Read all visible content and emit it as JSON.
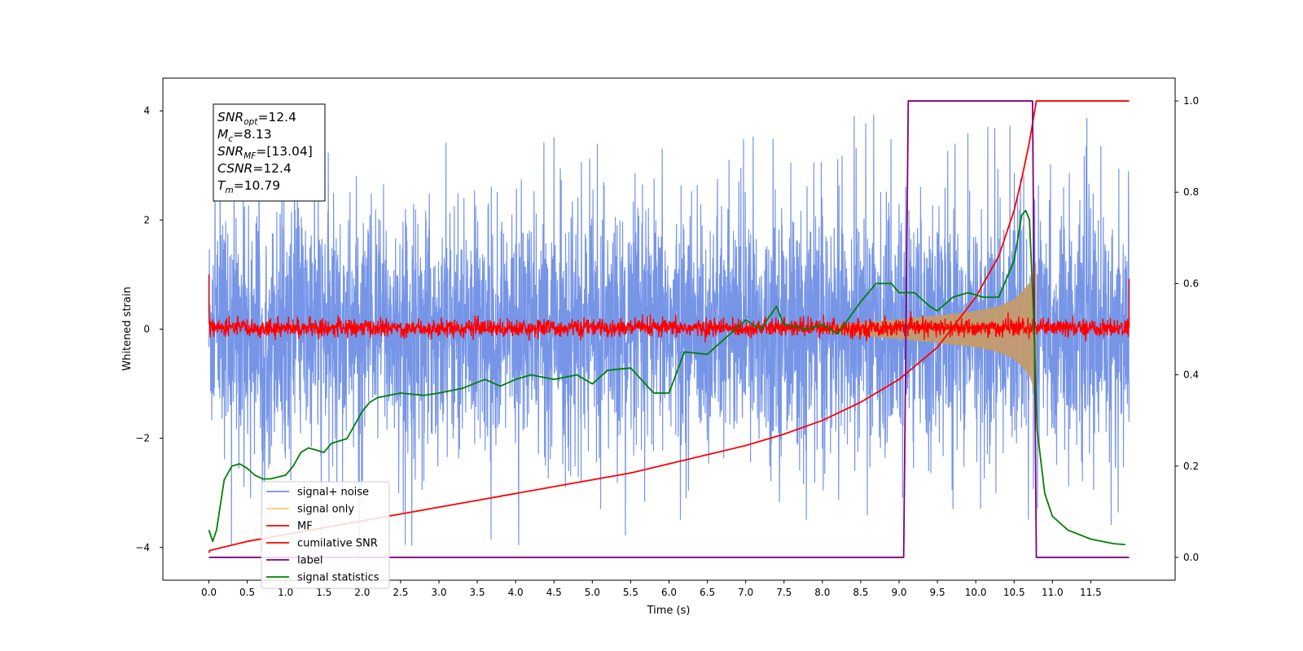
{
  "chart_data": {
    "type": "line",
    "xlabel": "Time (s)",
    "ylabel": "Whitened strain",
    "xlim": [
      -0.6,
      12.6
    ],
    "ylim": [
      -4.6,
      4.6
    ],
    "y2lim": [
      -0.05,
      1.05
    ],
    "x_ticks": [
      "0.0",
      "0.5",
      "1.0",
      "1.5",
      "2.0",
      "2.5",
      "3.0",
      "3.5",
      "4.0",
      "4.5",
      "5.0",
      "5.5",
      "6.0",
      "6.5",
      "7.0",
      "7.5",
      "8.0",
      "8.5",
      "9.0",
      "9.5",
      "10.0",
      "10.5",
      "11.0",
      "11.5"
    ],
    "y_ticks": [
      "4",
      "2",
      "0",
      "−2",
      "−4"
    ],
    "y2_ticks": [
      "1.0",
      "0.8",
      "0.6",
      "0.4",
      "0.2",
      "0.0"
    ],
    "grid": false,
    "legend_position": "lower-left",
    "annotation": {
      "lines": [
        {
          "base": "SNR",
          "sub": "opt",
          "value": "=12.4"
        },
        {
          "base": "M",
          "sub": "c",
          "value": "=8.13"
        },
        {
          "base": "SNR",
          "sub": "MF",
          "value": "=[13.04]"
        },
        {
          "base": "CSNR",
          "sub": "",
          "value": "=12.4"
        },
        {
          "base": "T",
          "sub": "m",
          "value": "=10.79"
        }
      ]
    },
    "series": [
      {
        "name": "signal+ noise",
        "axis": "left",
        "color": "#6f8fe6",
        "kind": "noise",
        "time_range": [
          0.0,
          12.0
        ],
        "envelope": 1.35,
        "peak": 4.15
      },
      {
        "name": "signal only",
        "axis": "left",
        "color": "#ffcc66",
        "kind": "chirp",
        "x": [
          8.0,
          8.5,
          9.0,
          9.5,
          10.0,
          10.3,
          10.5,
          10.6,
          10.7,
          10.79
        ],
        "amplitude": [
          0.05,
          0.12,
          0.18,
          0.25,
          0.33,
          0.42,
          0.55,
          0.68,
          0.85,
          1.25
        ]
      },
      {
        "name": "MF",
        "axis": "left",
        "color": "#ff0000",
        "kind": "noise",
        "time_range": [
          0.0,
          12.0
        ],
        "envelope": 0.08,
        "peak": 1.0
      },
      {
        "name": "cumilative SNR",
        "axis": "right",
        "color": "#ff0000",
        "x": [
          0.0,
          0.01,
          0.5,
          1.0,
          1.5,
          2.0,
          2.5,
          3.0,
          3.5,
          4.0,
          4.5,
          5.0,
          5.5,
          6.0,
          6.5,
          7.0,
          7.5,
          8.0,
          8.5,
          9.0,
          9.5,
          10.0,
          10.3,
          10.5,
          10.6,
          10.7,
          10.79,
          10.8,
          12.0
        ],
        "y": [
          0.01,
          0.015,
          0.035,
          0.05,
          0.065,
          0.08,
          0.095,
          0.11,
          0.125,
          0.14,
          0.155,
          0.17,
          0.185,
          0.205,
          0.225,
          0.245,
          0.27,
          0.3,
          0.34,
          0.39,
          0.46,
          0.57,
          0.66,
          0.76,
          0.83,
          0.91,
          1.0,
          1.0,
          1.0
        ]
      },
      {
        "name": "label",
        "axis": "right",
        "color": "#800080",
        "x": [
          0.0,
          9.06,
          9.12,
          10.74,
          10.79,
          12.0
        ],
        "y": [
          0.0,
          0.0,
          1.0,
          1.0,
          0.0,
          0.0
        ]
      },
      {
        "name": "signal statistics",
        "axis": "right",
        "color": "#008000",
        "x": [
          0.0,
          0.05,
          0.1,
          0.2,
          0.3,
          0.4,
          0.5,
          0.6,
          0.7,
          0.8,
          1.0,
          1.1,
          1.2,
          1.3,
          1.5,
          1.6,
          1.8,
          2.0,
          2.1,
          2.2,
          2.5,
          2.8,
          3.0,
          3.3,
          3.6,
          3.8,
          4.0,
          4.2,
          4.5,
          4.8,
          5.0,
          5.2,
          5.5,
          5.8,
          6.0,
          6.2,
          6.5,
          6.8,
          7.0,
          7.2,
          7.4,
          7.5,
          7.8,
          8.0,
          8.2,
          8.5,
          8.7,
          8.9,
          9.0,
          9.2,
          9.4,
          9.5,
          9.7,
          9.9,
          10.1,
          10.3,
          10.5,
          10.6,
          10.65,
          10.7,
          10.75,
          10.8,
          10.9,
          11.0,
          11.2,
          11.5,
          11.8,
          11.95
        ],
        "y": [
          0.06,
          0.035,
          0.06,
          0.17,
          0.2,
          0.205,
          0.195,
          0.18,
          0.172,
          0.172,
          0.18,
          0.2,
          0.23,
          0.24,
          0.23,
          0.25,
          0.26,
          0.32,
          0.34,
          0.35,
          0.36,
          0.355,
          0.36,
          0.37,
          0.39,
          0.375,
          0.39,
          0.4,
          0.39,
          0.4,
          0.38,
          0.41,
          0.415,
          0.36,
          0.36,
          0.45,
          0.445,
          0.49,
          0.52,
          0.5,
          0.55,
          0.51,
          0.5,
          0.51,
          0.49,
          0.56,
          0.6,
          0.6,
          0.58,
          0.58,
          0.55,
          0.54,
          0.57,
          0.58,
          0.57,
          0.57,
          0.65,
          0.75,
          0.76,
          0.74,
          0.55,
          0.28,
          0.14,
          0.09,
          0.06,
          0.04,
          0.03,
          0.028
        ]
      }
    ]
  }
}
